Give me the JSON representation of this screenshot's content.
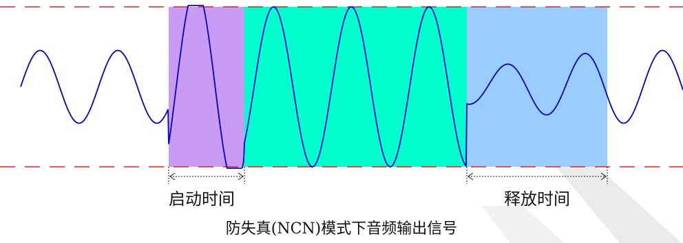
{
  "diagram": {
    "labels": {
      "attack_time": "启动时间",
      "release_time": "释放时间",
      "caption": "防失真(NCN)模式下音频输出信号"
    },
    "colors": {
      "attack_region": "#C89BF5",
      "hold_region": "#00FFCC",
      "release_region": "#99CCFF",
      "waveform": "#0000CC",
      "limit_lines": "#DD2222",
      "dimension_arrows": "#111111",
      "watermark": "#E8E8E8"
    }
  }
}
